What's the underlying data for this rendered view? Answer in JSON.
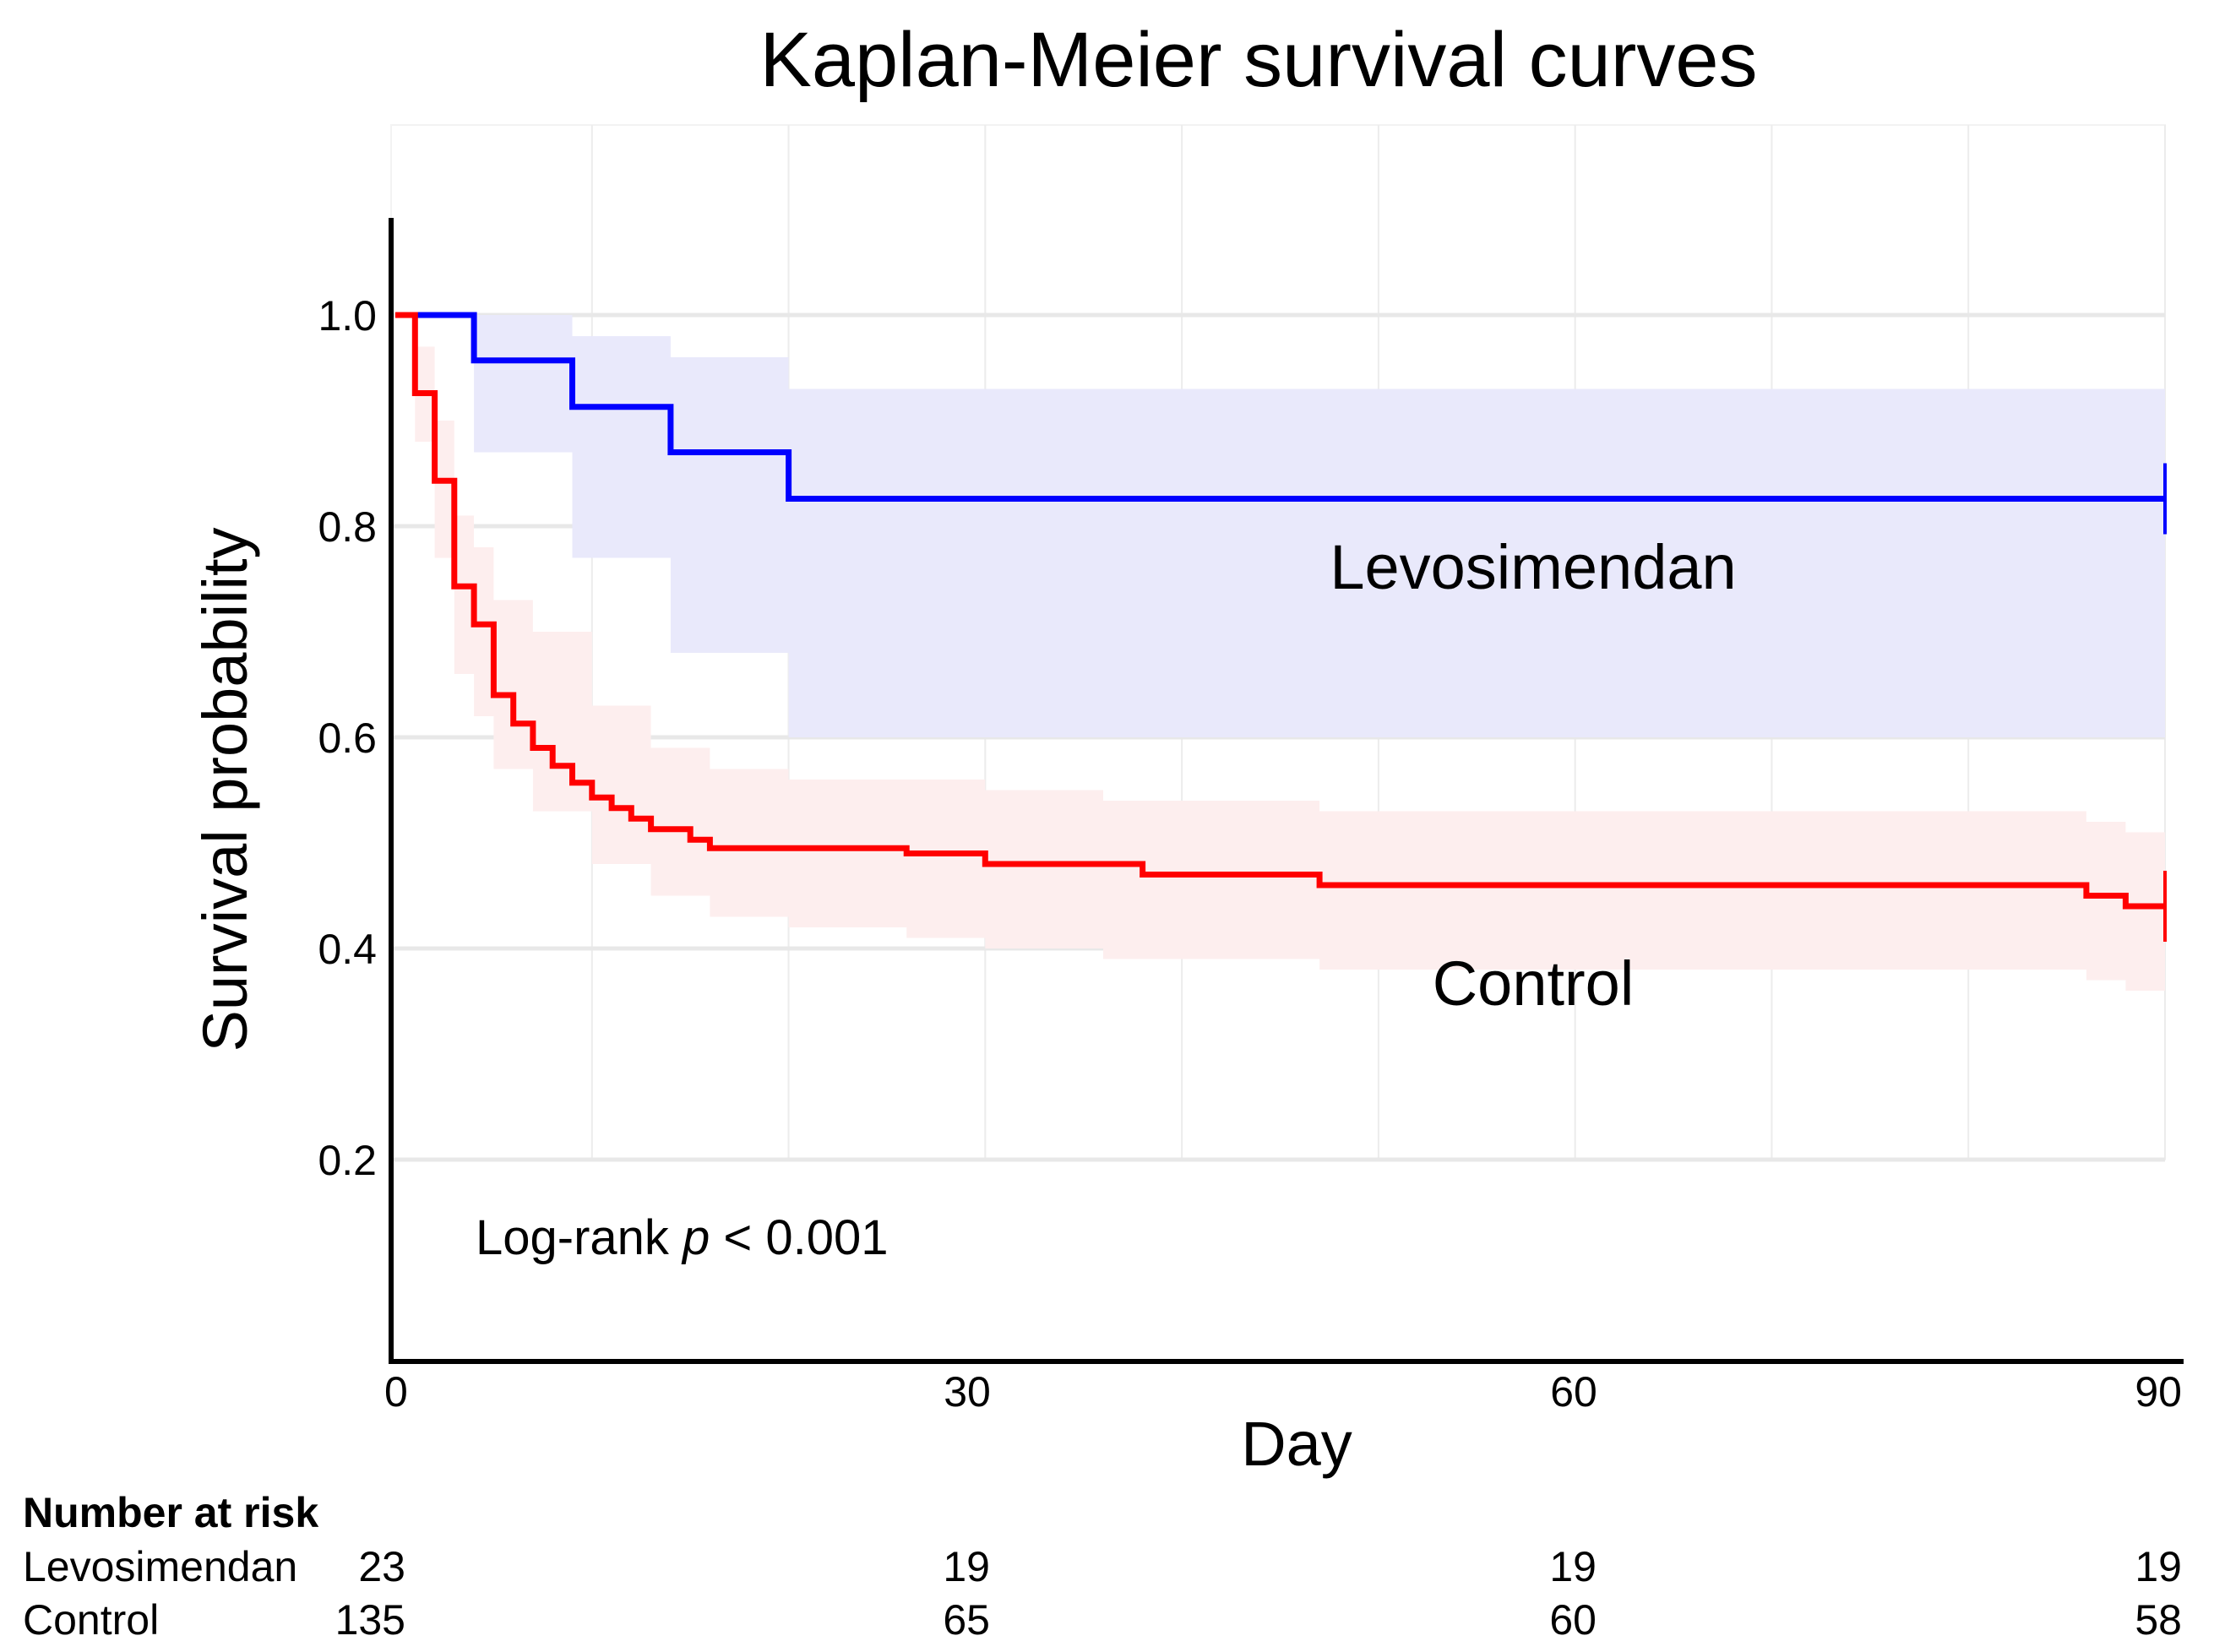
{
  "chart_data": {
    "type": "line",
    "title": "Kaplan-Meier survival curves",
    "xlabel": "Day",
    "ylabel": "Survival probability",
    "xlim": [
      0,
      90
    ],
    "ylim": [
      0,
      1.1
    ],
    "x_ticks": [
      "0",
      "30",
      "60",
      "90"
    ],
    "x_tick_values": [
      0,
      30,
      60,
      90
    ],
    "y_ticks": [
      "0.2",
      "0.4",
      "0.6",
      "0.8",
      "1.0"
    ],
    "y_tick_values": [
      0.2,
      0.4,
      0.6,
      0.8,
      1.0
    ],
    "grid": true,
    "legend": "inline",
    "annotation": {
      "prefix": "Log-rank ",
      "p": "p",
      "suffix": " < 0.001"
    },
    "series": [
      {
        "name": "Levosimendan",
        "color": "#0000ff",
        "band_color": "#e9e9fb",
        "steps": [
          [
            0,
            1.0
          ],
          [
            4,
            0.957
          ],
          [
            9,
            0.913
          ],
          [
            14,
            0.87
          ],
          [
            20,
            0.826
          ],
          [
            90,
            0.826
          ]
        ],
        "ci": [
          [
            0,
            1.0,
            1.0
          ],
          [
            4,
            1.0,
            0.87
          ],
          [
            9,
            0.98,
            0.77
          ],
          [
            14,
            0.96,
            0.68
          ],
          [
            20,
            0.93,
            0.6
          ],
          [
            90,
            0.93,
            0.6
          ]
        ]
      },
      {
        "name": "Control",
        "color": "#ff0000",
        "band_color": "#fdeeee",
        "steps": [
          [
            0,
            1.0
          ],
          [
            1,
            0.926
          ],
          [
            2,
            0.843
          ],
          [
            3,
            0.743
          ],
          [
            4,
            0.707
          ],
          [
            5,
            0.64
          ],
          [
            6,
            0.613
          ],
          [
            7,
            0.59
          ],
          [
            8,
            0.573
          ],
          [
            9,
            0.557
          ],
          [
            10,
            0.543
          ],
          [
            11,
            0.533
          ],
          [
            12,
            0.523
          ],
          [
            13,
            0.513
          ],
          [
            15,
            0.503
          ],
          [
            16,
            0.495
          ],
          [
            26,
            0.49
          ],
          [
            30,
            0.48
          ],
          [
            38,
            0.47
          ],
          [
            47,
            0.46
          ],
          [
            86,
            0.45
          ],
          [
            88,
            0.44
          ],
          [
            90,
            0.44
          ]
        ],
        "ci": [
          [
            0,
            1.0,
            1.0
          ],
          [
            1,
            0.97,
            0.88
          ],
          [
            2,
            0.9,
            0.77
          ],
          [
            3,
            0.81,
            0.66
          ],
          [
            4,
            0.78,
            0.62
          ],
          [
            5,
            0.73,
            0.57
          ],
          [
            7,
            0.7,
            0.53
          ],
          [
            10,
            0.63,
            0.48
          ],
          [
            13,
            0.59,
            0.45
          ],
          [
            16,
            0.57,
            0.43
          ],
          [
            20,
            0.56,
            0.42
          ],
          [
            26,
            0.56,
            0.41
          ],
          [
            30,
            0.55,
            0.4
          ],
          [
            36,
            0.54,
            0.39
          ],
          [
            47,
            0.53,
            0.38
          ],
          [
            86,
            0.52,
            0.37
          ],
          [
            88,
            0.51,
            0.36
          ],
          [
            90,
            0.51,
            0.36
          ]
        ]
      }
    ],
    "risk_table": {
      "title": "Number at risk",
      "rows": [
        {
          "label": "Levosimendan",
          "values": [
            "23",
            "19",
            "19",
            "19"
          ]
        },
        {
          "label": "Control",
          "values": [
            "135",
            "65",
            "60",
            "58"
          ]
        }
      ]
    }
  }
}
